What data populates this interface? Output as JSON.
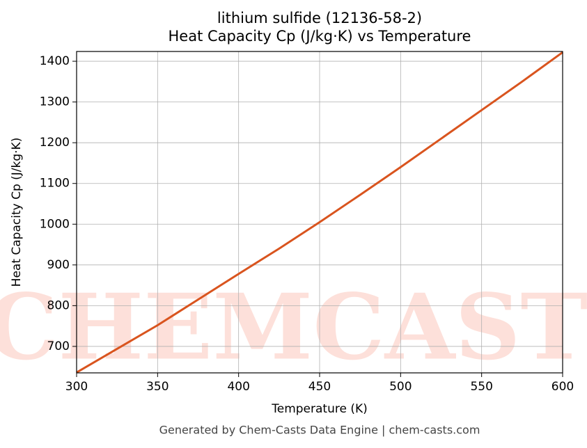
{
  "chart_data": {
    "type": "line",
    "title": "lithium sulfide (12136-58-2)",
    "subtitle": "Heat Capacity Cp (J/kg·K) vs Temperature",
    "x_label": "Temperature (K)",
    "y_label": "Heat Capacity Cp (J/kg·K)",
    "footer": "Generated by Chem-Casts Data Engine | chem-casts.com",
    "watermark": "CHEMCASTS",
    "x": [
      300,
      325,
      350,
      375,
      400,
      425,
      450,
      475,
      500,
      525,
      550,
      575,
      600
    ],
    "series": [
      {
        "name": "Heat Capacity Cp",
        "color": "#d9541e",
        "values": [
          636,
          694,
          752,
          815,
          878,
          940,
          1005,
          1072,
          1140,
          1210,
          1280,
          1350,
          1422
        ]
      }
    ],
    "xlim": [
      300,
      600
    ],
    "xticks": [
      300,
      350,
      400,
      450,
      500,
      550,
      600
    ],
    "ylim": [
      635,
      1424
    ],
    "yticks": [
      700,
      800,
      900,
      1000,
      1100,
      1200,
      1300,
      1400
    ],
    "grid": true
  }
}
